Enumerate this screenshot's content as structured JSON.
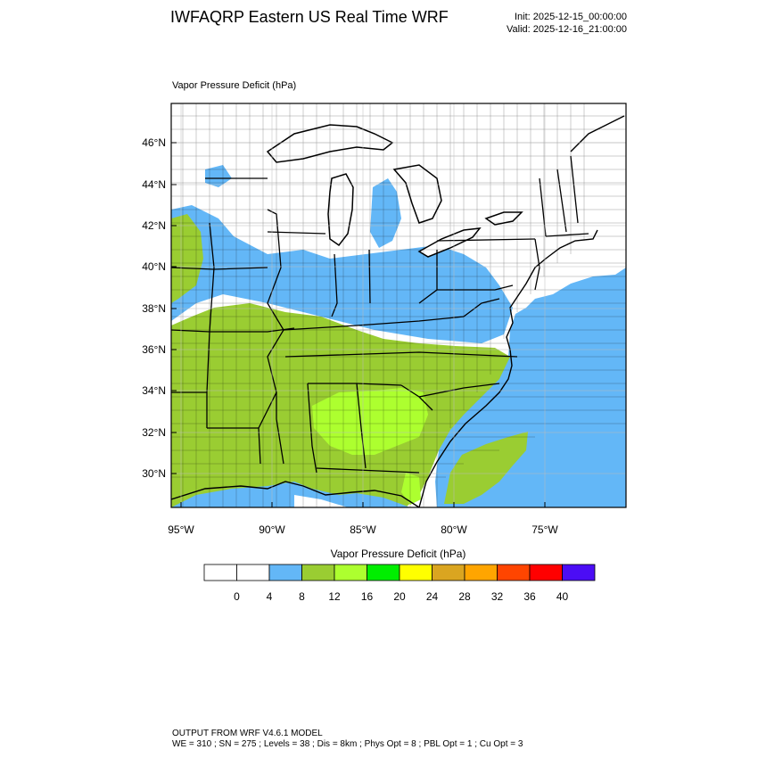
{
  "header": {
    "title": "IWFAQRP Eastern US Real Time WRF",
    "init": "Init: 2025-12-15_00:00:00",
    "valid": "Valid: 2025-12-16_21:00:00"
  },
  "plot": {
    "label": "Vapor Pressure Deficit   (hPa)",
    "lat_ticks": [
      "46°N",
      "44°N",
      "42°N",
      "40°N",
      "38°N",
      "36°N",
      "34°N",
      "32°N",
      "30°N"
    ],
    "lon_ticks": [
      "95°W",
      "90°W",
      "85°W",
      "80°W",
      "75°W"
    ]
  },
  "colorbar": {
    "title": "Vapor Pressure Deficit  (hPa)",
    "labels": [
      "0",
      "4",
      "8",
      "12",
      "16",
      "20",
      "24",
      "28",
      "32",
      "36",
      "40"
    ],
    "colors": [
      "#ffffff",
      "#ffffff",
      "#63b7f7",
      "#9acd32",
      "#adff2f",
      "#00ee00",
      "#ffff00",
      "#daa520",
      "#ffa500",
      "#ff4500",
      "#ff0000",
      "#4b0df5"
    ]
  },
  "footer": {
    "line1": "OUTPUT FROM WRF V4.6.1 MODEL",
    "line2": "WE = 310 ; SN = 275 ; Levels = 38 ; Dis = 8km ; Phys Opt = 8 ; PBL Opt = 1 ; Cu Opt = 3"
  }
}
